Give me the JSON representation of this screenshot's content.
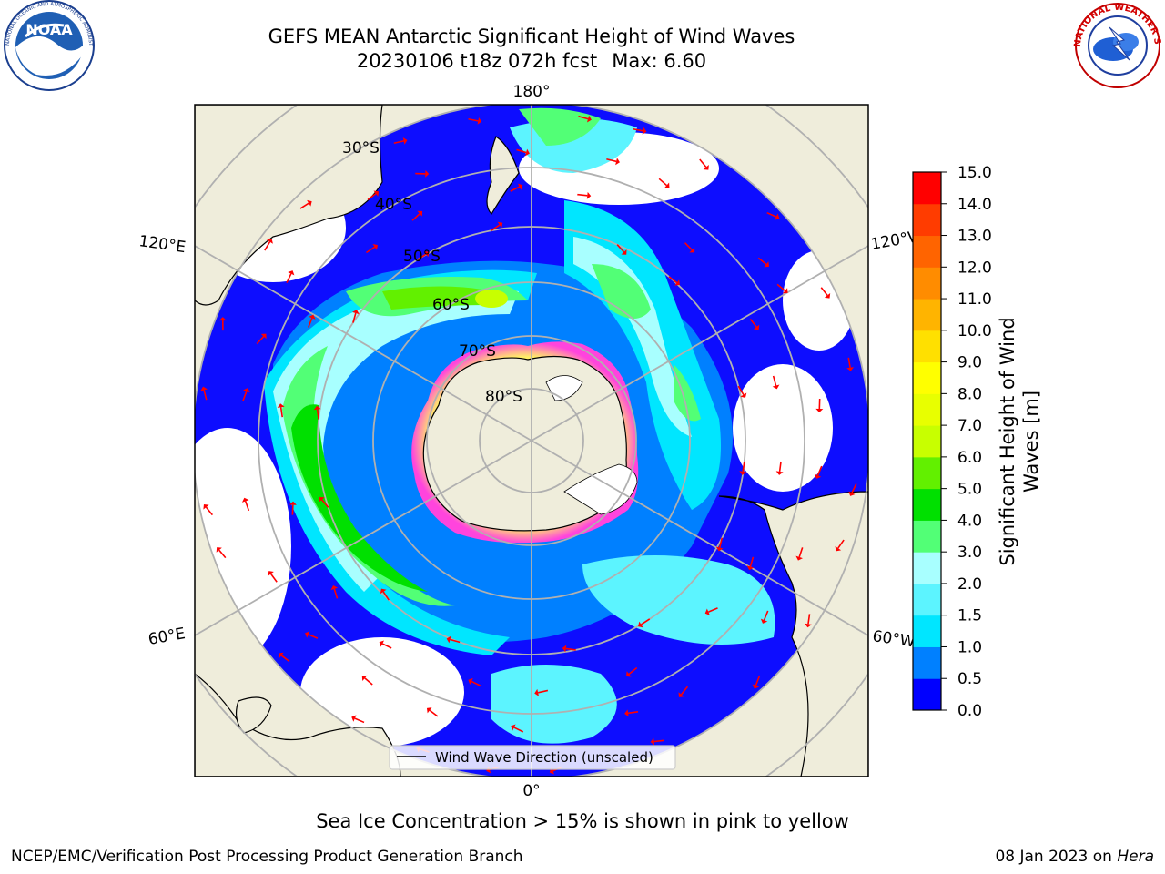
{
  "header": {
    "title_line1": "GEFS MEAN Antarctic Significant Height of Wind Waves",
    "title_line2_run": "20230106 t18z 072h fcst",
    "title_line2_max": "Max: 6.60"
  },
  "logos": {
    "noaa_text": "NOAA",
    "noaa_ring_text": "NATIONAL OCEANIC AND ATMOSPHERIC ADMINISTRATION · U.S. DEPARTMENT OF COMMERCE",
    "nws_ring_text": "NATIONAL WEATHER SERVICE"
  },
  "map": {
    "longitude_labels": {
      "top": "180°",
      "bottom": "0°",
      "upper_left": "120°E",
      "upper_right": "120°W",
      "lower_left": "60°E",
      "lower_right": "60°W"
    },
    "latitude_labels": [
      "30°S",
      "40°S",
      "50°S",
      "60°S",
      "70°S",
      "80°S"
    ],
    "legend": "Wind Wave Direction (unscaled)",
    "colors": {
      "land": "#efeddb",
      "ocean_none": "#ffffff",
      "ice_pink": "#ff44dd",
      "ice_yellow": "#ffee66",
      "arrow": "#ff0000",
      "grid": "#b0b0b0"
    }
  },
  "colorbar": {
    "label_line1": "Significant Height of Wind",
    "label_line2": "Waves [m]",
    "ticks": [
      "0.0",
      "0.5",
      "1.0",
      "1.5",
      "2.0",
      "3.0",
      "4.0",
      "5.0",
      "6.0",
      "7.0",
      "8.0",
      "9.0",
      "10.0",
      "11.0",
      "12.0",
      "13.0",
      "14.0",
      "15.0"
    ],
    "colors": [
      "#0000ff",
      "#0080ff",
      "#00e6ff",
      "#5cf4ff",
      "#a8ffff",
      "#52ff76",
      "#00e000",
      "#62f000",
      "#c8ff00",
      "#e8ff00",
      "#ffff00",
      "#ffe000",
      "#ffb400",
      "#ff8c00",
      "#ff6400",
      "#ff3c00",
      "#ff0000"
    ]
  },
  "note": "Sea Ice Concentration > 15% is shown in pink to yellow",
  "footer": {
    "left": "NCEP/EMC/Verification Post Processing Product Generation Branch",
    "right_date": "08 Jan 2023 on",
    "right_host": "Hera"
  }
}
